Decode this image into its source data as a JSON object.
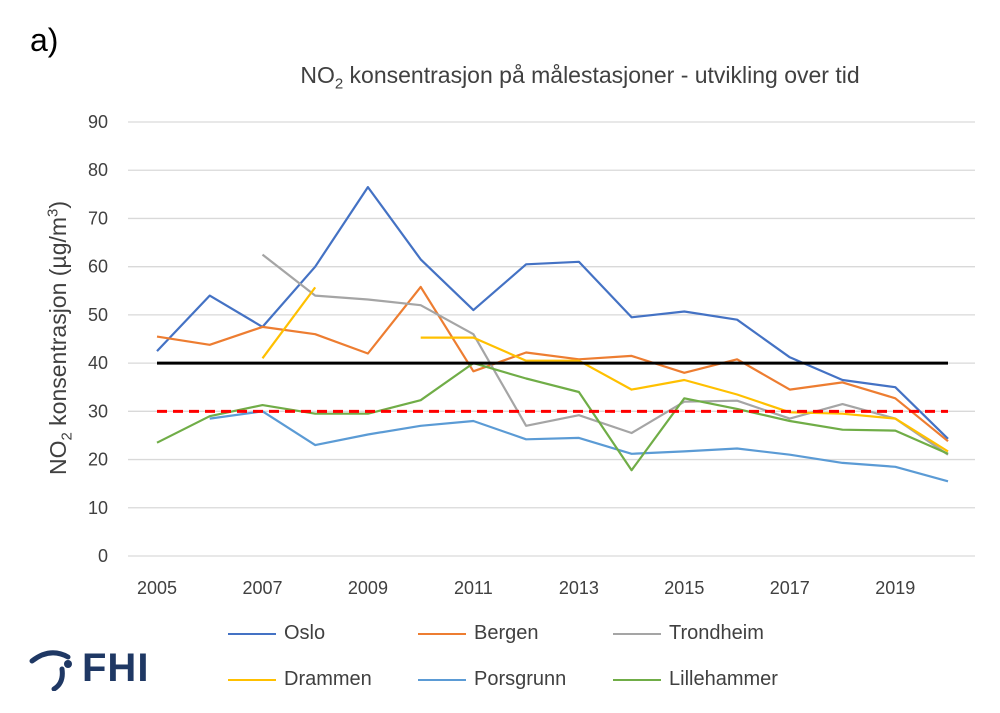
{
  "panel_label": "a)",
  "logo": {
    "text": "FHI",
    "icon": "fhi-logo-icon"
  },
  "chart_data": {
    "type": "line",
    "title_prefix": "NO",
    "title_sub": "2",
    "title_rest": " konsentrasjon på målestasjoner - utvikling over tid",
    "ylabel_prefix": "NO",
    "ylabel_sub": "2",
    "ylabel_rest": " konsentrasjon (µg/m",
    "ylabel_sup": "3",
    "ylabel_end": ")",
    "xlabel": "",
    "xlim": [
      2005,
      2020
    ],
    "ylim": [
      0,
      90
    ],
    "y_ticks": [
      0,
      10,
      20,
      30,
      40,
      50,
      60,
      70,
      80,
      90
    ],
    "x_ticks": [
      "2005",
      "2007",
      "2009",
      "2011",
      "2013",
      "2015",
      "2017",
      "2019"
    ],
    "grid": true,
    "legend_position": "bottom",
    "reference_lines": [
      {
        "y": 40,
        "color": "#000000",
        "style": "solid"
      },
      {
        "y": 30,
        "color": "#ff0000",
        "style": "dashed"
      }
    ],
    "series": [
      {
        "name": "Oslo",
        "color": "#4472c4",
        "points": [
          [
            2005,
            42.5
          ],
          [
            2006,
            54
          ],
          [
            2007,
            47.5
          ],
          [
            2008,
            60
          ],
          [
            2009,
            76.5
          ],
          [
            2010,
            61.5
          ],
          [
            2011,
            51
          ],
          [
            2012,
            60.5
          ],
          [
            2013,
            61
          ],
          [
            2014,
            49.5
          ],
          [
            2015,
            50.7
          ],
          [
            2016,
            49
          ],
          [
            2017,
            41.2
          ],
          [
            2018,
            36.5
          ],
          [
            2019,
            35
          ],
          [
            2020,
            24.3
          ]
        ]
      },
      {
        "name": "Bergen",
        "color": "#ed7d31",
        "points": [
          [
            2005,
            45.5
          ],
          [
            2006,
            43.8
          ],
          [
            2007,
            47.5
          ],
          [
            2008,
            46
          ],
          [
            2009,
            42
          ],
          [
            2010,
            55.8
          ],
          [
            2011,
            38.3
          ],
          [
            2012,
            42.2
          ],
          [
            2013,
            40.8
          ],
          [
            2014,
            41.5
          ],
          [
            2015,
            38
          ],
          [
            2016,
            40.8
          ],
          [
            2017,
            34.5
          ],
          [
            2018,
            36
          ],
          [
            2019,
            32.7
          ],
          [
            2020,
            23.8
          ]
        ]
      },
      {
        "name": "Trondheim",
        "color": "#a5a5a5",
        "points": [
          [
            2007,
            62.5
          ],
          [
            2008,
            54
          ],
          [
            2009,
            53.2
          ],
          [
            2010,
            52
          ],
          [
            2011,
            46
          ],
          [
            2012,
            27
          ],
          [
            2013,
            29.2
          ],
          [
            2014,
            25.5
          ],
          [
            2015,
            32
          ],
          [
            2016,
            32.2
          ],
          [
            2017,
            28.5
          ],
          [
            2018,
            31.5
          ],
          [
            2019,
            28.5
          ],
          [
            2020,
            21
          ]
        ]
      },
      {
        "name": "Drammen",
        "color": "#ffc000",
        "segments": [
          [
            [
              2007,
              41
            ],
            [
              2008,
              55.7
            ]
          ],
          [
            [
              2010,
              45.3
            ],
            [
              2011,
              45.3
            ],
            [
              2012,
              40.5
            ],
            [
              2013,
              40.5
            ],
            [
              2014,
              34.5
            ],
            [
              2015,
              36.5
            ],
            [
              2016,
              33.5
            ],
            [
              2017,
              29.8
            ],
            [
              2018,
              29.5
            ],
            [
              2019,
              28.5
            ],
            [
              2020,
              21.7
            ]
          ]
        ]
      },
      {
        "name": "Porsgrunn",
        "color": "#5b9bd5",
        "points": [
          [
            2006,
            28.5
          ],
          [
            2007,
            30
          ],
          [
            2008,
            23
          ],
          [
            2009,
            25.2
          ],
          [
            2010,
            27
          ],
          [
            2011,
            28
          ],
          [
            2012,
            24.2
          ],
          [
            2013,
            24.5
          ],
          [
            2014,
            21.2
          ],
          [
            2015,
            21.7
          ],
          [
            2016,
            22.3
          ],
          [
            2017,
            21
          ],
          [
            2018,
            19.3
          ],
          [
            2019,
            18.5
          ],
          [
            2020,
            15.5
          ]
        ]
      },
      {
        "name": "Lillehammer",
        "color": "#70ad47",
        "points": [
          [
            2005,
            23.5
          ],
          [
            2006,
            29
          ],
          [
            2007,
            31.3
          ],
          [
            2008,
            29.5
          ],
          [
            2009,
            29.5
          ],
          [
            2010,
            32.3
          ],
          [
            2011,
            40
          ],
          [
            2012,
            36.8
          ],
          [
            2013,
            34
          ],
          [
            2014,
            17.8
          ],
          [
            2015,
            32.7
          ],
          [
            2016,
            30.5
          ],
          [
            2017,
            28
          ],
          [
            2018,
            26.2
          ],
          [
            2019,
            26
          ],
          [
            2020,
            21.2
          ]
        ]
      }
    ]
  }
}
